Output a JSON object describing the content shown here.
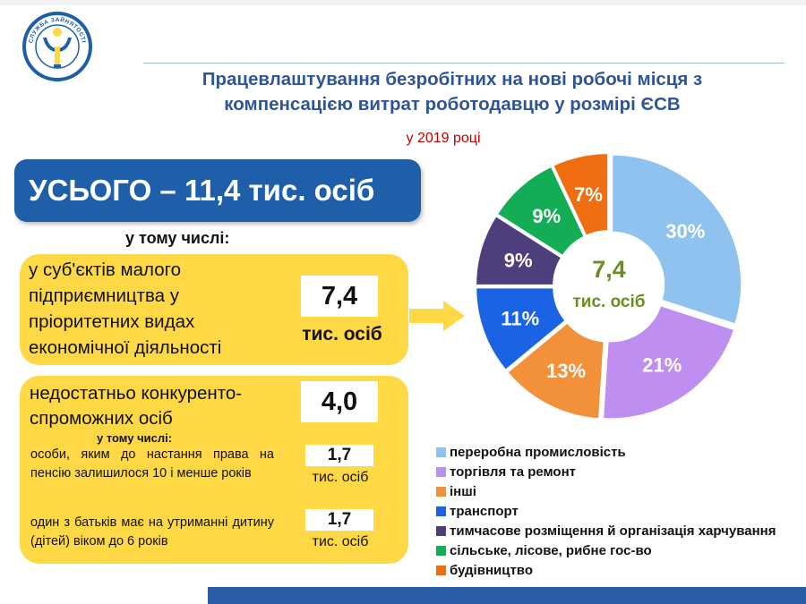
{
  "header": {
    "logo_text": "СЛУЖБА ЗАЙНЯТОСТІ ДЕРЖАВНА",
    "title_line1": "Працевлаштування безробітних на нові робочі місця з",
    "title_line2": "компенсацією витрат роботодавцю у розмірі ЄСВ",
    "subtitle": "у 2019 році"
  },
  "summary": {
    "total": "УСЬОГО – 11,4 тис. осіб",
    "including": "у тому числі:"
  },
  "groups": {
    "small_business": {
      "text": "у суб'єктів малого підприємництва у пріоритетних видах економічної діяльності",
      "value": "7,4",
      "unit": "тис. осіб"
    },
    "uncompetitive": {
      "text": "недостатньо конкуренто-спроможних осіб",
      "value": "4,0",
      "including": "у тому числі:",
      "sub1_text": "особи, яким до настання права на пенсію залишилося 10 і менше років",
      "sub1_value": "1,7",
      "sub1_unit": "тис. осіб",
      "sub2_text": "один з батьків має на утриманні дитину (дітей) віком до 6 років",
      "sub2_value": "1,7",
      "sub2_unit": "тис. осіб"
    }
  },
  "chart_data": {
    "type": "pie",
    "center_value": "7,4",
    "center_unit": "тис. осіб",
    "legend_position": "bottom",
    "categories": [
      "переробна промисловість",
      "торгівля та ремонт",
      "інші",
      "транспорт",
      "тимчасове розміщення й організація харчування",
      "сільське, лісове, рибне гос-во",
      "будівництво"
    ],
    "values": [
      30,
      21,
      13,
      11,
      9,
      9,
      7
    ],
    "labels": [
      "30%",
      "21%",
      "13%",
      "11%",
      "9%",
      "9%",
      "7%"
    ],
    "colors": [
      "#8fc2ee",
      "#be8ef0",
      "#f3913a",
      "#1a63e5",
      "#4e3e7c",
      "#13ad56",
      "#f16e10"
    ],
    "center_color": "#6b8e23"
  }
}
